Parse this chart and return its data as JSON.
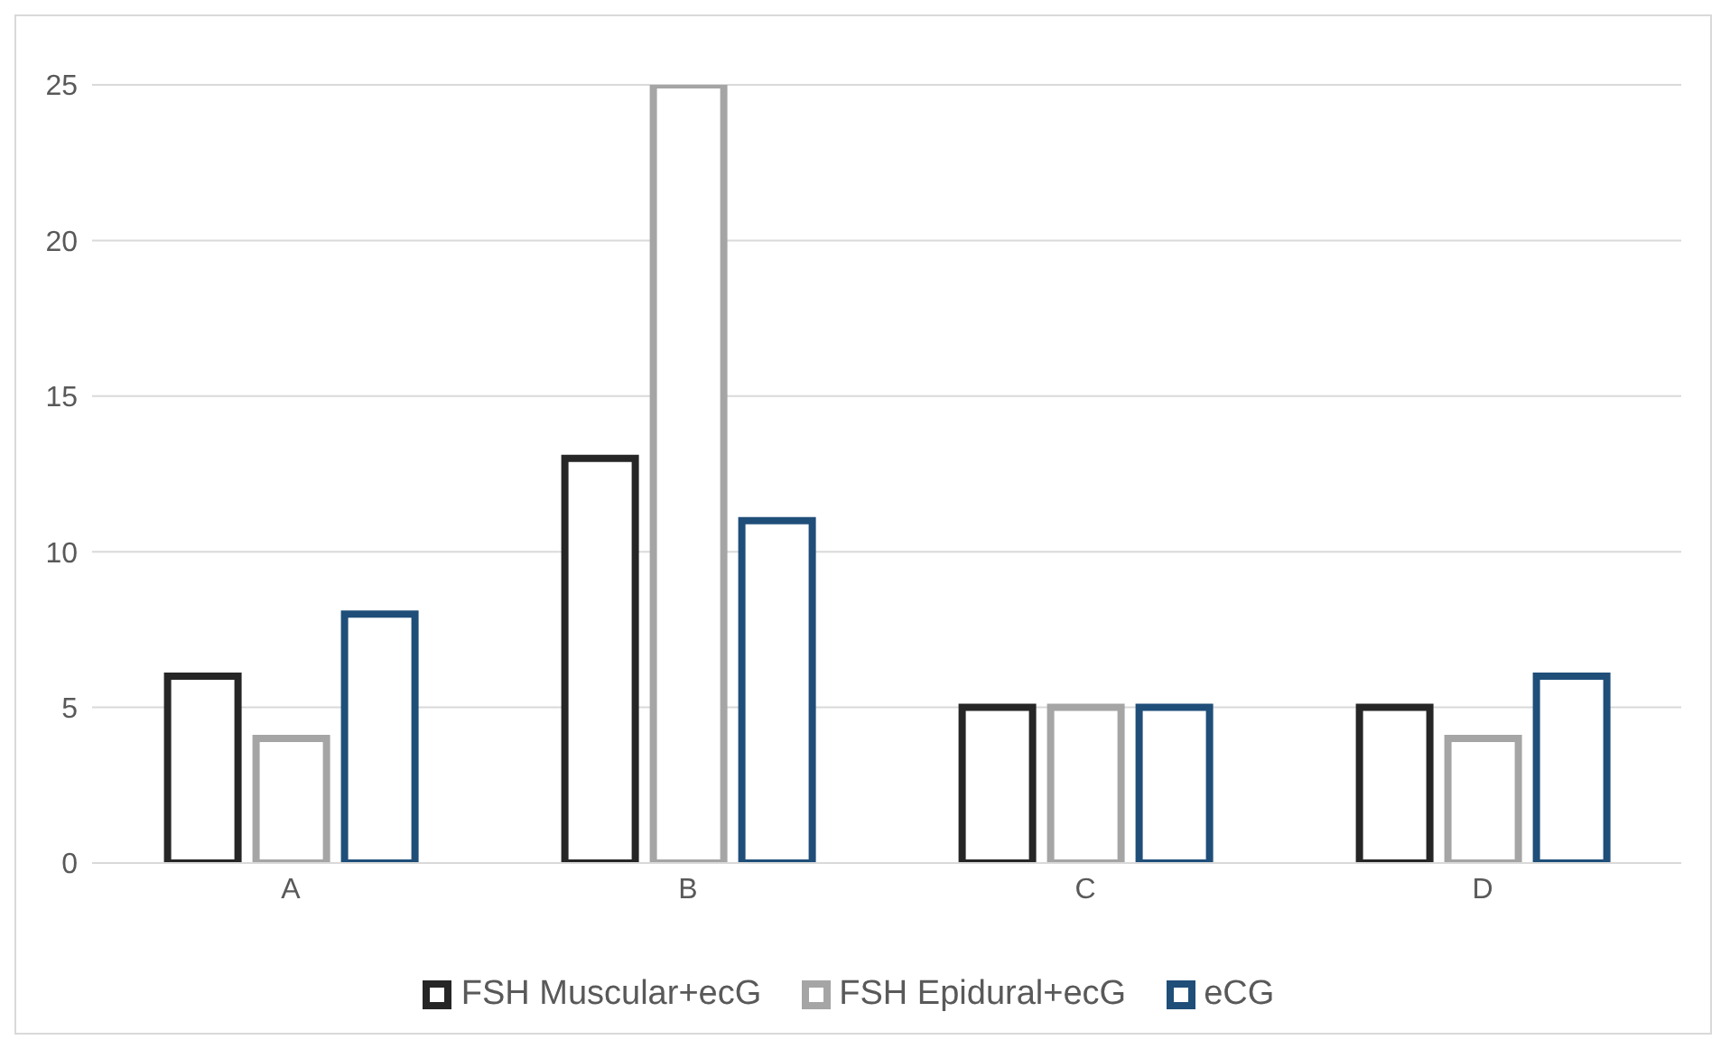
{
  "chart_data": {
    "type": "bar",
    "categories": [
      "A",
      "B",
      "C",
      "D"
    ],
    "series": [
      {
        "name": "FSH Muscular+ecG",
        "color": "#262626",
        "values": [
          6,
          13,
          5,
          5
        ]
      },
      {
        "name": "FSH Epidural+ecG",
        "color": "#a5a5a5",
        "values": [
          4,
          25,
          5,
          4
        ]
      },
      {
        "name": "eCG",
        "color": "#1f4e79",
        "values": [
          8,
          11,
          5,
          6
        ]
      }
    ],
    "ylim": [
      0,
      25
    ],
    "yticks": [
      0,
      5,
      10,
      15,
      20,
      25
    ],
    "grid": "y",
    "legend": "bottom"
  }
}
